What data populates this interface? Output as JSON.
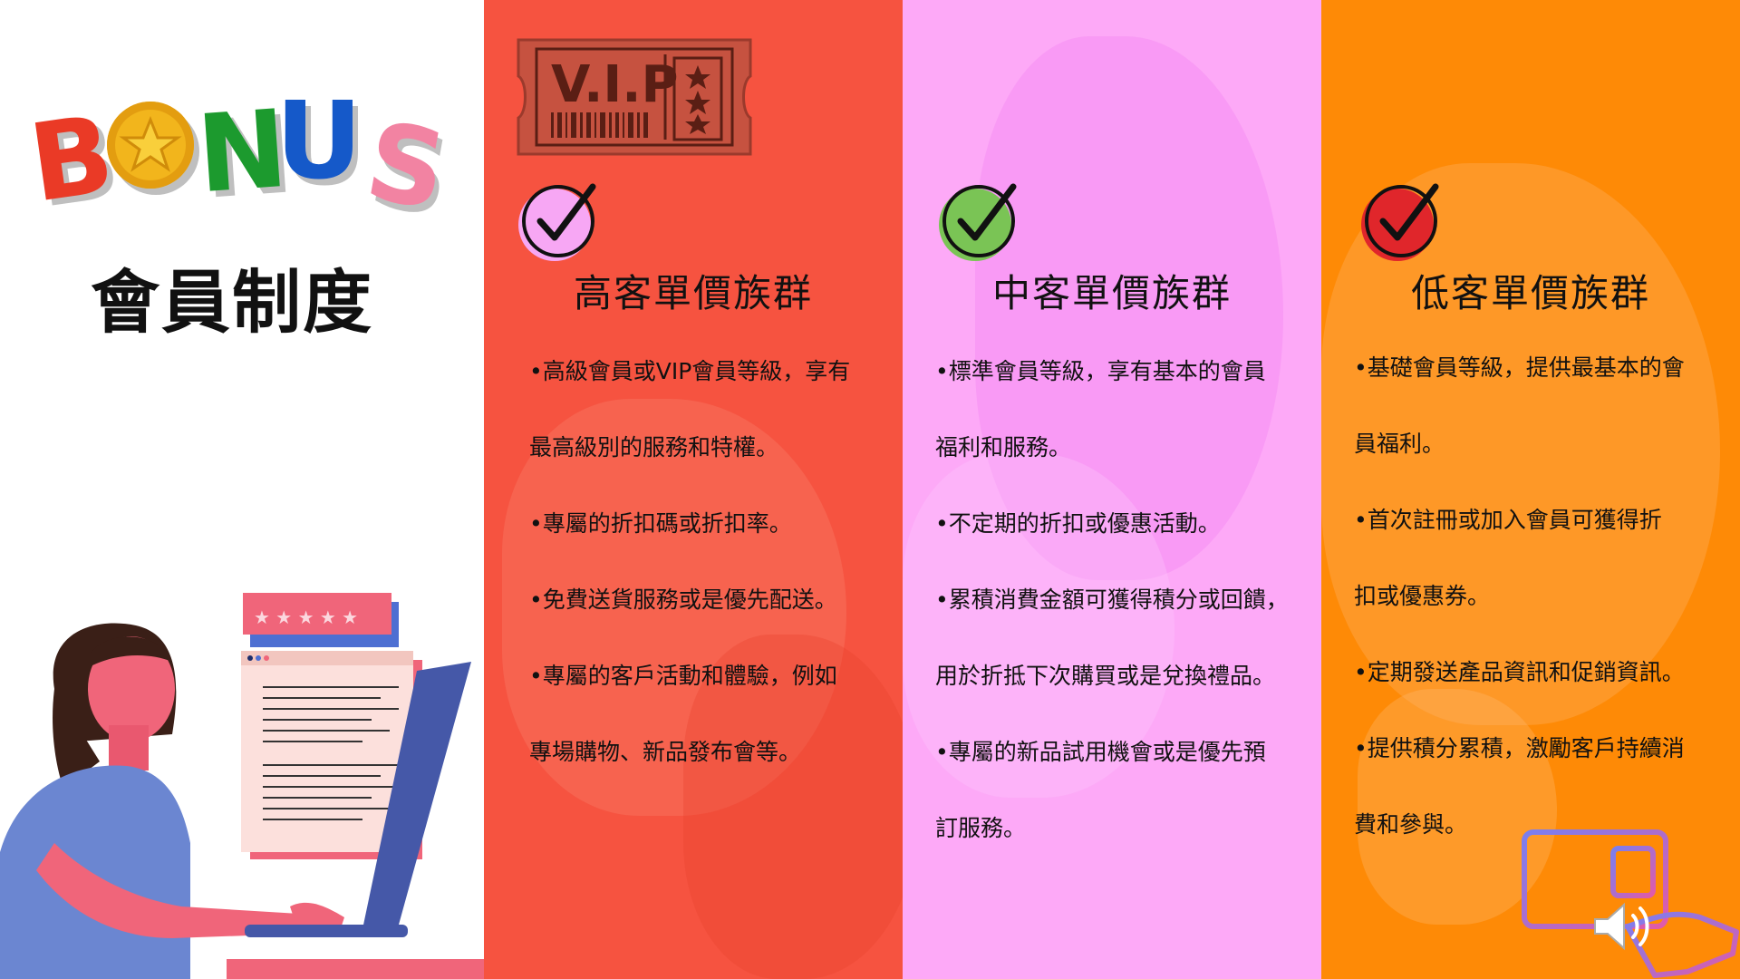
{
  "logo": {
    "text": "BONUS"
  },
  "page_title": "會員制度",
  "columns": [
    {
      "title": "高客單價族群",
      "check_color": "#f7a7f4",
      "lines": [
        "•高級會員或VIP會員等級，享有",
        "最高級別的服務和特權。",
        "•專屬的折扣碼或折扣率。",
        "•免費送貨服務或是優先配送。",
        "•專屬的客戶活動和體驗，例如",
        "專場購物、新品發布會等。"
      ]
    },
    {
      "title": "中客單價族群",
      "check_color": "#7ac455",
      "lines": [
        "•標準會員等級，享有基本的會員",
        "福利和服務。",
        "•不定期的折扣或優惠活動。",
        "•累積消費金額可獲得積分或回饋，",
        "用於折抵下次購買或是兌換禮品。",
        "•專屬的新品試用機會或是優先預",
        "訂服務。"
      ]
    },
    {
      "title": "低客單價族群",
      "check_color": "#e0262b",
      "lines": [
        "•基礎會員等級，提供最基本的會",
        "員福利。",
        "•首次註冊或加入會員可獲得折",
        "扣或優惠券。",
        "•定期發送產品資訊和促銷資訊。",
        "•提供積分累積，激勵客戶持續消",
        "費和參與。"
      ]
    }
  ],
  "vip_ticket": {
    "text": "V.I.P"
  },
  "colors": {
    "col1": "#f65340",
    "col2": "#fda9f7",
    "col3": "#fe8a06"
  },
  "icons": [
    "bonus-logo",
    "vip-ticket-icon",
    "checkmark-icon",
    "woman-laptop-illustration",
    "membership-card-icon",
    "speaker-icon"
  ]
}
